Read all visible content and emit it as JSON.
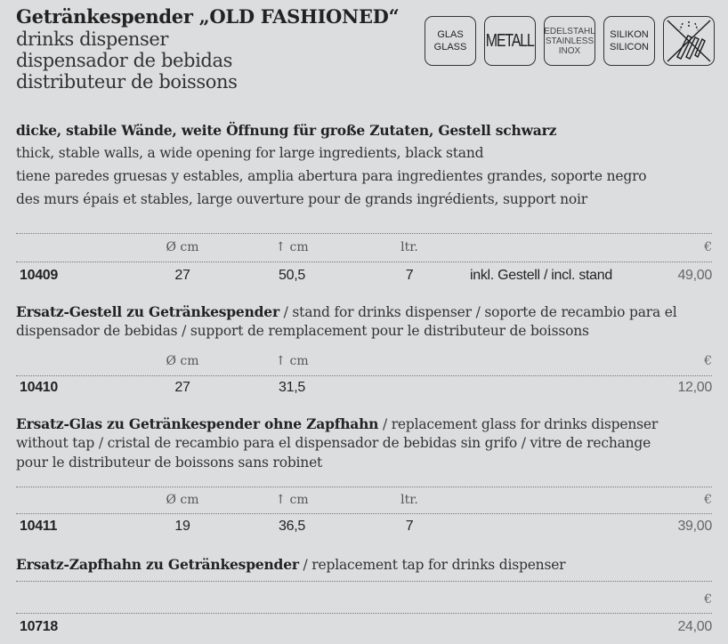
{
  "header": {
    "title": "Getränkespender „OLD FASHIONED“",
    "subtitles": [
      "drinks dispenser",
      "dispensador de bebidas",
      "distributeur de boissons"
    ]
  },
  "badges": [
    {
      "lines": [
        "GLAS",
        "GLASS"
      ]
    },
    {
      "lines": [
        "METALL"
      ]
    },
    {
      "lines": [
        "EDELSTAHL",
        "STAINLESS",
        "INOX"
      ]
    },
    {
      "lines": [
        "SILIKON",
        "SILICON"
      ]
    },
    {
      "icon": "not-dishwasher-safe-icon"
    }
  ],
  "description": {
    "de": "dicke, stabile Wände, weite Öffnung für große Zutaten, Gestell schwarz",
    "en": "thick, stable walls, a wide opening for large ingredients, black stand",
    "es": "tiene paredes gruesas y estables, amplia abertura para ingredientes grandes, soporte negro",
    "fr": "des murs épais et stables, large ouverture pour de grands ingrédients, support noir"
  },
  "columns": {
    "diameter": "Ø cm",
    "height": "cm",
    "height_icon": "arrow-up-icon",
    "volume": "ltr.",
    "price": "€"
  },
  "products": [
    {
      "code": "10409",
      "diameter": "27",
      "height": "50,5",
      "volume": "7",
      "note": "inkl. Gestell / incl. stand",
      "price": "49,00"
    },
    {
      "heading_bold": "Ersatz-Gestell zu Getränkespender",
      "heading_line1": " / stand for drinks dispenser  / soporte de recambio para el",
      "heading_line2": "dispensador de bebidas / support de remplacement pour le distributeur de boissons",
      "code": "10410",
      "diameter": "27",
      "height": "31,5",
      "price": "12,00"
    },
    {
      "heading_bold": "Ersatz-Glas zu Getränkespender ohne Zapfhahn",
      "heading_line1": " / replacement glass for drinks dispenser",
      "heading_line2": "without tap / cristal de recambio para el dispensador de bebidas sin grifo / vitre de rechange",
      "heading_line3": "pour le distributeur de boissons sans robinet",
      "code": "10411",
      "diameter": "19",
      "height": "36,5",
      "volume": "7",
      "price": "39,00"
    },
    {
      "heading_bold": "Ersatz-Zapfhahn zu Getränkespender",
      "heading_line1": " / replacement tap for drinks dispenser",
      "code": "10718",
      "price": "24,00"
    }
  ]
}
